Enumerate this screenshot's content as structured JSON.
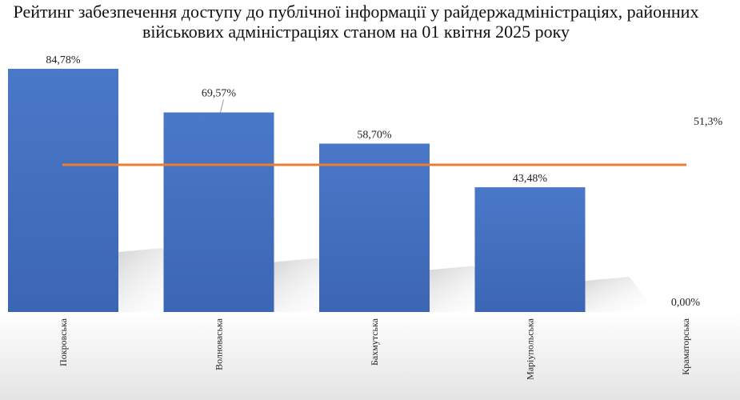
{
  "chart_data": {
    "type": "bar",
    "title": "Рейтинг забезпечення доступу до публічної інформації у райдержадміністраціях, районних військових адміністраціях станом на 01 квітня 2025 року",
    "title_lines": [
      "Рейтинг забезпечення доступу до публічної інформації у райдержадміністраціях, районних",
      "військових адміністраціях станом на 01 квітня 2025 року"
    ],
    "categories": [
      "Покровська",
      "Волноваська",
      "Бахмутська",
      "Маріупольська",
      "Краматорська"
    ],
    "values": [
      84.78,
      69.57,
      58.7,
      43.48,
      0.0
    ],
    "value_labels": [
      "84,78%",
      "69,57%",
      "58,70%",
      "43,48%",
      "0,00%"
    ],
    "average": {
      "value": 51.3,
      "label": "51,3%"
    },
    "ylim": [
      0,
      100
    ],
    "bar_color": "#4472c4",
    "average_line_color": "#ed7d31",
    "grid": false,
    "legend": "none"
  }
}
